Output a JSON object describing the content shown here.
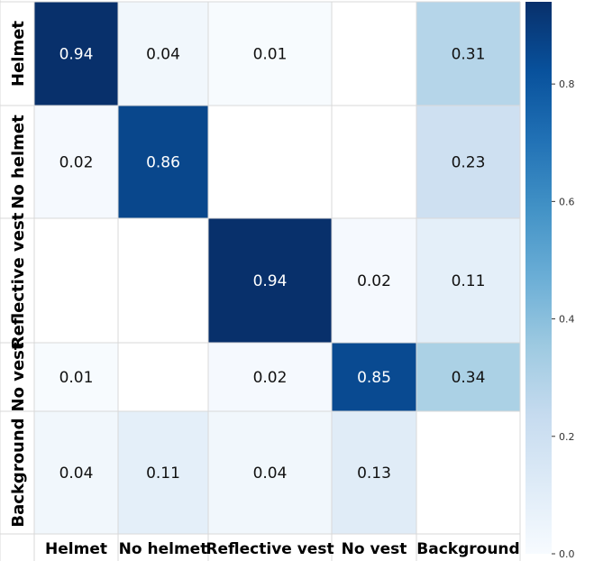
{
  "chart_data": {
    "type": "heatmap",
    "row_labels": [
      "Helmet",
      "No helmet",
      "Reflective vest",
      "No vest",
      "Background"
    ],
    "col_labels": [
      "Helmet",
      "No helmet",
      "Reflective vest",
      "No vest",
      "Background"
    ],
    "values": [
      [
        0.94,
        0.04,
        0.01,
        null,
        0.31
      ],
      [
        0.02,
        0.86,
        null,
        null,
        0.23
      ],
      [
        null,
        null,
        0.94,
        0.02,
        0.11
      ],
      [
        0.01,
        null,
        0.02,
        0.85,
        0.34
      ],
      [
        0.04,
        0.11,
        0.04,
        0.13,
        null
      ]
    ],
    "value_labels": [
      [
        "0.94",
        "0.04",
        "0.01",
        "",
        "0.31"
      ],
      [
        "0.02",
        "0.86",
        "",
        "",
        "0.23"
      ],
      [
        "",
        "",
        "0.94",
        "0.02",
        "0.11"
      ],
      [
        "0.01",
        "",
        "0.02",
        "0.85",
        "0.34"
      ],
      [
        "0.04",
        "0.11",
        "0.04",
        "0.13",
        ""
      ]
    ],
    "colormap": "Blues",
    "color_range": [
      0,
      0.94
    ],
    "colorbar_ticks": [
      "0.0",
      "0.2",
      "0.4",
      "0.6",
      "0.8"
    ],
    "colorbar_tick_values": [
      0.0,
      0.2,
      0.4,
      0.6,
      0.8
    ],
    "grid": true
  }
}
